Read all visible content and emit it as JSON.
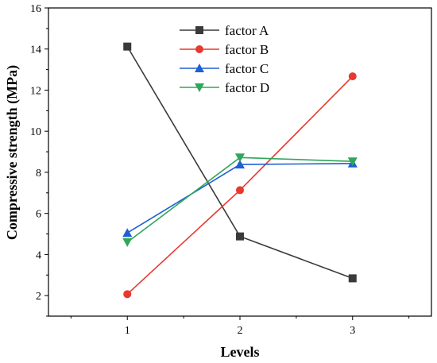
{
  "chart_data": {
    "type": "line",
    "title": "",
    "xlabel": "Levels",
    "ylabel": "Compressive strength (MPa)",
    "x": [
      1,
      2,
      3
    ],
    "xlim": [
      0.3,
      3.7
    ],
    "ylim": [
      1,
      16
    ],
    "xticks": [
      1,
      2,
      3
    ],
    "yticks": [
      2,
      4,
      6,
      8,
      10,
      12,
      14,
      16
    ],
    "grid": false,
    "legend_position": "top-center",
    "series": [
      {
        "name": "factor A",
        "values": [
          14.12,
          4.88,
          2.84
        ],
        "color": "#3a3a3a",
        "marker": "square"
      },
      {
        "name": "factor B",
        "values": [
          2.07,
          7.13,
          12.67
        ],
        "color": "#e8382f",
        "marker": "circle"
      },
      {
        "name": "factor C",
        "values": [
          5.05,
          8.38,
          8.43
        ],
        "color": "#1e5fd1",
        "marker": "triangle-up"
      },
      {
        "name": "factor D",
        "values": [
          4.6,
          8.72,
          8.53
        ],
        "color": "#2fa65a",
        "marker": "triangle-down"
      }
    ]
  }
}
